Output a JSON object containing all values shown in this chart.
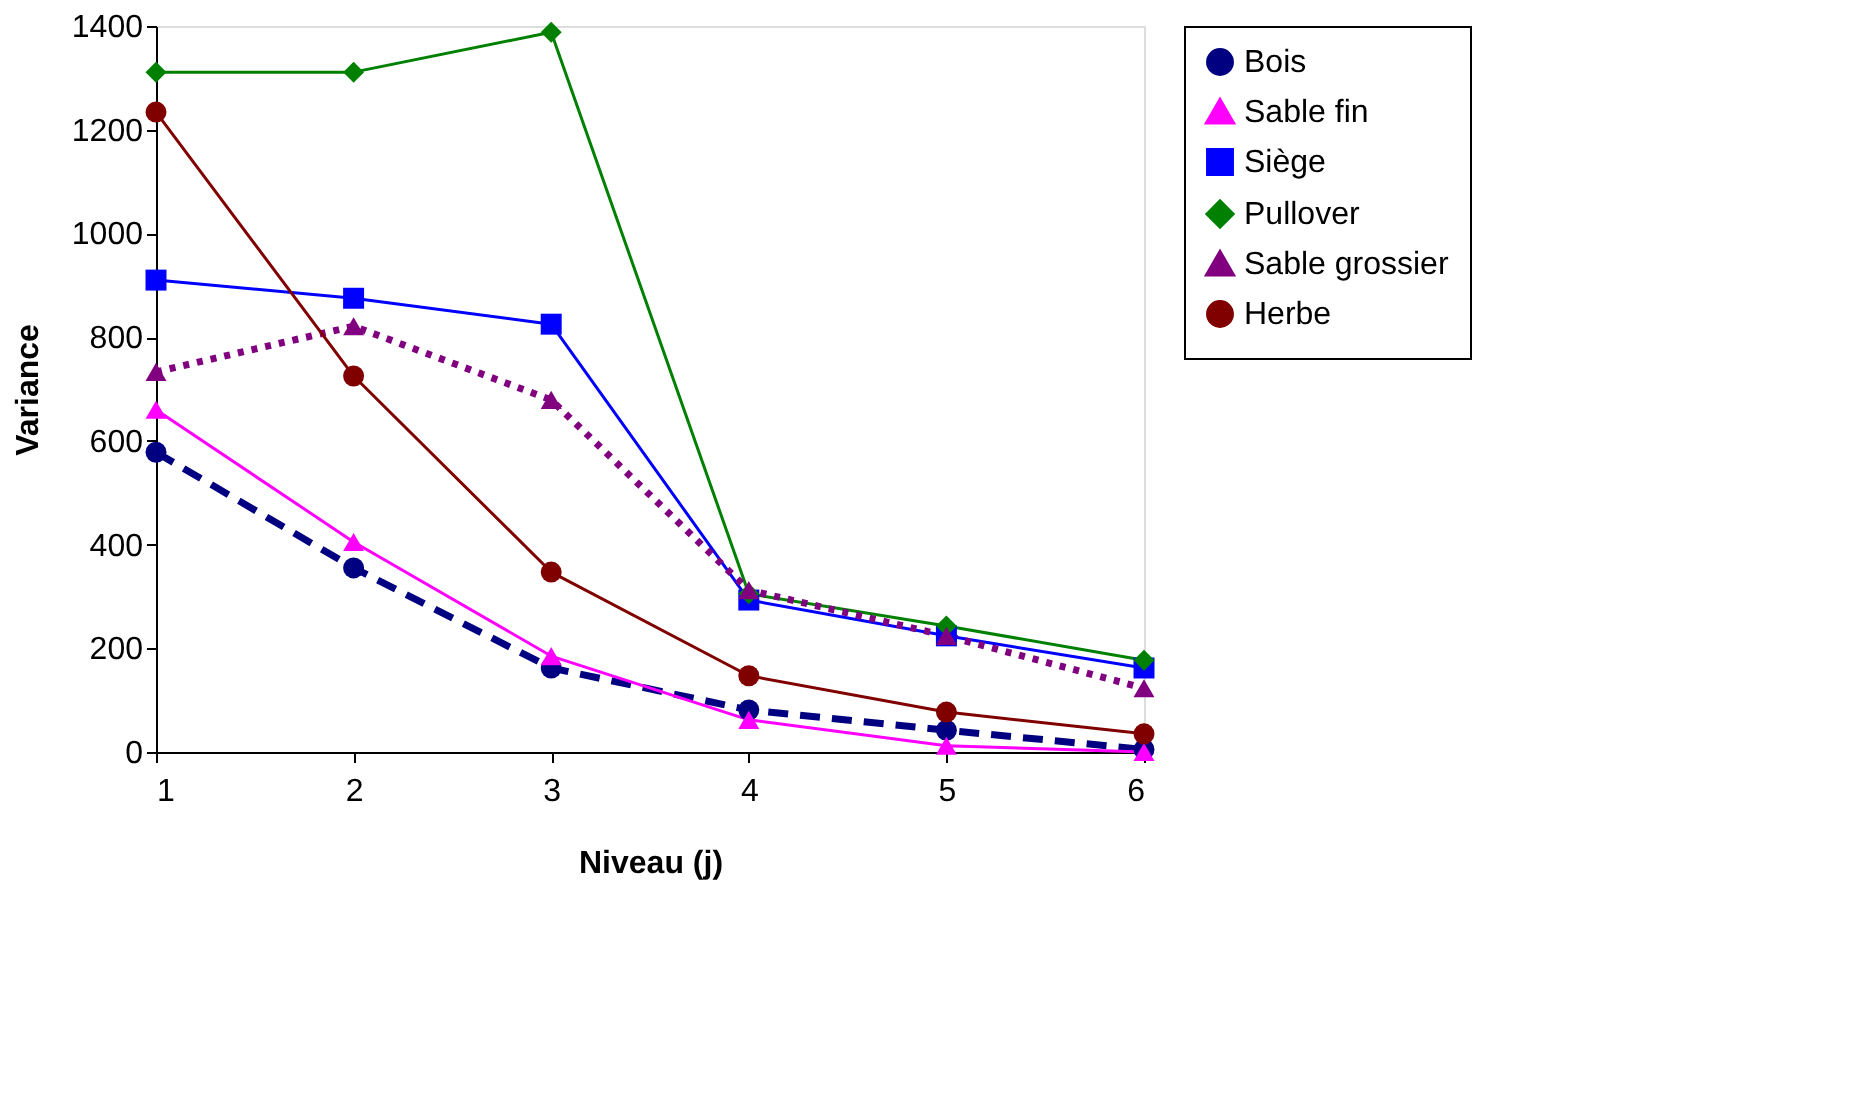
{
  "chart_data": {
    "type": "line",
    "xlabel": "Niveau (j)",
    "ylabel": "Variance",
    "x": [
      1,
      2,
      3,
      4,
      5,
      6
    ],
    "xlim": [
      1,
      6
    ],
    "xticks": [
      1,
      2,
      3,
      4,
      5,
      6
    ],
    "ylim": [
      0,
      1400
    ],
    "yticks": [
      0,
      200,
      400,
      600,
      800,
      {
        "value": 1000,
        "label": "1000"
      },
      {
        "value": 1200,
        "label": "1200"
      },
      {
        "value": 1400,
        "label": "1400"
      }
    ],
    "grid": false,
    "legend": "right",
    "series": [
      {
        "name": "Bois",
        "color": "#000080",
        "marker": "circle",
        "line_style": "dashed",
        "values": [
          578,
          355,
          162,
          81,
          42,
          5
        ]
      },
      {
        "name": "Sable fin",
        "color": "#ff00ff",
        "marker": "triangle",
        "line_style": "solid",
        "values": [
          660,
          405,
          185,
          62,
          12,
          0
        ]
      },
      {
        "name": "Siège",
        "color": "#0000ff",
        "marker": "square",
        "line_style": "solid",
        "values": [
          910,
          875,
          825,
          293,
          224,
          162
        ]
      },
      {
        "name": "Pullover",
        "color": "#008000",
        "marker": "diamond",
        "line_style": "solid",
        "values": [
          1311,
          1311,
          1388,
          305,
          243,
          177
        ]
      },
      {
        "name": "Sable grossier",
        "color": "#800080",
        "marker": "triangle",
        "line_style": "dotted",
        "values": [
          733,
          821,
          679,
          312,
          224,
          123
        ]
      },
      {
        "name": "Herbe",
        "color": "#800000",
        "marker": "circle",
        "line_style": "solid",
        "values": [
          1234,
          725,
          347,
          147,
          77,
          35
        ]
      }
    ]
  }
}
